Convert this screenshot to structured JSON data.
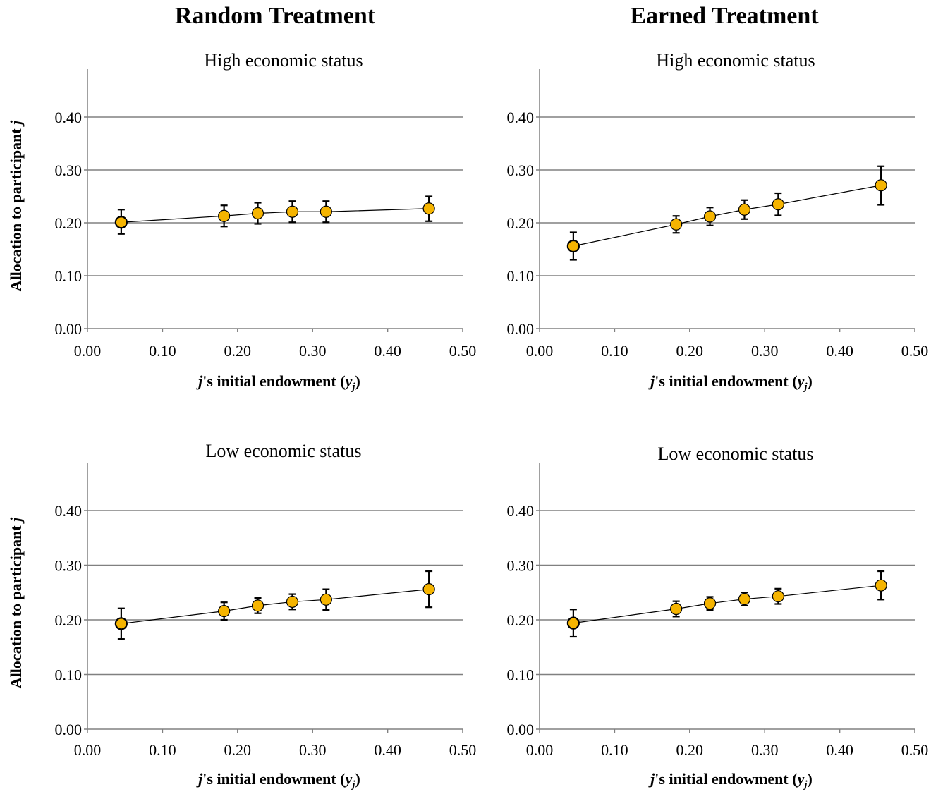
{
  "column_titles": [
    "Random Treatment",
    "Earned Treatment"
  ],
  "y_axis_label": "Allocation to participant j",
  "x_axis_label": {
    "prefix": "j",
    "middle": "'s initial endowment (",
    "var": "y",
    "sub": "j",
    "suffix": ")"
  },
  "colors": {
    "marker_fill": "#F5B400",
    "marker_stroke": "#000000",
    "grid": "#808080",
    "line": "#000000"
  },
  "chart_data": [
    {
      "type": "scatter",
      "treatment": "Random Treatment",
      "title": "High economic status",
      "x": [
        0.045,
        0.182,
        0.227,
        0.273,
        0.318,
        0.455
      ],
      "y": [
        0.201,
        0.213,
        0.218,
        0.221,
        0.221,
        0.227
      ],
      "err_low": [
        0.179,
        0.193,
        0.198,
        0.201,
        0.201,
        0.203
      ],
      "err_high": [
        0.225,
        0.233,
        0.238,
        0.241,
        0.241,
        0.25
      ],
      "xlim": [
        0,
        0.5
      ],
      "ylim": [
        0,
        0.4
      ],
      "xticks": [
        "0.00",
        "0.10",
        "0.20",
        "0.30",
        "0.40",
        "0.50"
      ],
      "yticks": [
        "0.00",
        "0.10",
        "0.20",
        "0.30",
        "0.40"
      ],
      "grid": true
    },
    {
      "type": "scatter",
      "treatment": "Earned Treatment",
      "title": "High economic status",
      "x": [
        0.045,
        0.182,
        0.227,
        0.273,
        0.318,
        0.455
      ],
      "y": [
        0.156,
        0.197,
        0.212,
        0.225,
        0.235,
        0.271
      ],
      "err_low": [
        0.13,
        0.181,
        0.195,
        0.207,
        0.214,
        0.234
      ],
      "err_high": [
        0.182,
        0.213,
        0.229,
        0.243,
        0.256,
        0.307
      ],
      "xlim": [
        0,
        0.5
      ],
      "ylim": [
        0,
        0.4
      ],
      "xticks": [
        "0.00",
        "0.10",
        "0.20",
        "0.30",
        "0.40",
        "0.50"
      ],
      "yticks": [
        "0.00",
        "0.10",
        "0.20",
        "0.30",
        "0.40"
      ],
      "grid": true
    },
    {
      "type": "scatter",
      "treatment": "Random Treatment",
      "title": "Low economic status",
      "x": [
        0.045,
        0.182,
        0.227,
        0.273,
        0.318,
        0.455
      ],
      "y": [
        0.193,
        0.216,
        0.226,
        0.233,
        0.237,
        0.256
      ],
      "err_low": [
        0.165,
        0.2,
        0.212,
        0.219,
        0.218,
        0.223
      ],
      "err_high": [
        0.221,
        0.232,
        0.24,
        0.247,
        0.256,
        0.289
      ],
      "xlim": [
        0,
        0.5
      ],
      "ylim": [
        0,
        0.4
      ],
      "xticks": [
        "0.00",
        "0.10",
        "0.20",
        "0.30",
        "0.40",
        "0.50"
      ],
      "yticks": [
        "0.00",
        "0.10",
        "0.20",
        "0.30",
        "0.40"
      ],
      "grid": true
    },
    {
      "type": "scatter",
      "treatment": "Earned Treatment",
      "title": "Low economic status",
      "x": [
        0.045,
        0.182,
        0.227,
        0.273,
        0.318,
        0.455
      ],
      "y": [
        0.194,
        0.22,
        0.23,
        0.238,
        0.243,
        0.263
      ],
      "err_low": [
        0.169,
        0.206,
        0.218,
        0.226,
        0.229,
        0.237
      ],
      "err_high": [
        0.219,
        0.234,
        0.242,
        0.25,
        0.257,
        0.289
      ],
      "xlim": [
        0,
        0.5
      ],
      "ylim": [
        0,
        0.4
      ],
      "xticks": [
        "0.00",
        "0.10",
        "0.20",
        "0.30",
        "0.40",
        "0.50"
      ],
      "yticks": [
        "0.00",
        "0.10",
        "0.20",
        "0.30",
        "0.40"
      ],
      "grid": true
    }
  ]
}
